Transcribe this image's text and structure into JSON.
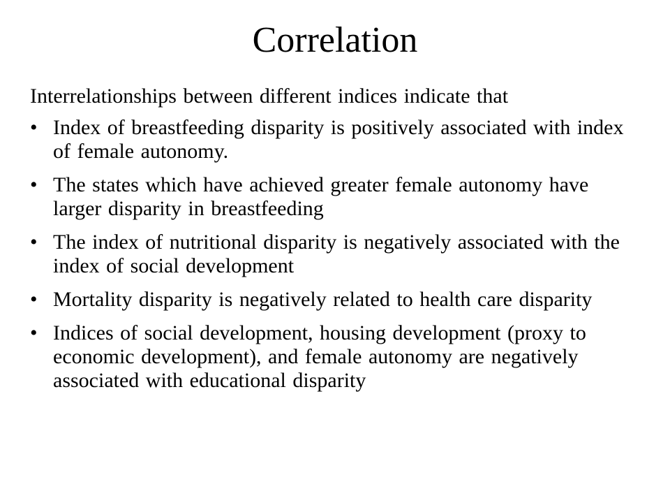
{
  "slide": {
    "title": "Correlation",
    "intro": "Interrelationships between different indices indicate that",
    "bullet_glyph": "•",
    "bullets": [
      "Index of breastfeeding disparity is positively associated with index of female autonomy.",
      "The states which have achieved greater female autonomy have larger disparity in breastfeeding",
      "The index of nutritional disparity is negatively associated with the index of social development",
      "Mortality disparity is negatively related to health care disparity",
      "Indices of social development, housing development (proxy to economic development), and female autonomy are negatively associated with educational disparity"
    ]
  }
}
